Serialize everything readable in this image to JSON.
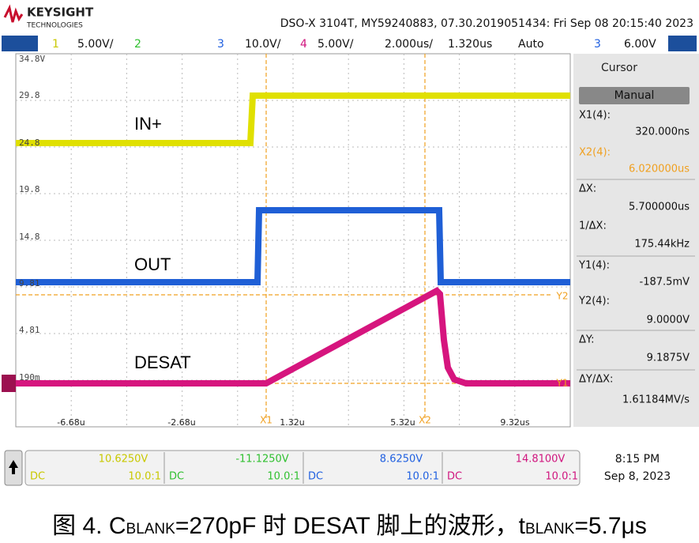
{
  "header": {
    "brand": "KEYSIGHT",
    "brand_sub": "TECHNOLOGIES",
    "instrument": "DSO-X 3104T, MY59240883, 07.30.2019051434: Fri Sep 08 20:15:40 2023"
  },
  "channel_bar": {
    "items": [
      "1",
      "5.00V/",
      "2",
      "3",
      "10.0V/",
      "4",
      "5.00V/",
      "2.000us/",
      "1.320us",
      "Auto",
      "3",
      "6.00V"
    ]
  },
  "screen": {
    "y_labels": [
      "34.8V",
      "29.8",
      "24.8",
      "19.8",
      "14.8",
      "9.81",
      "4.81",
      "190m"
    ],
    "x_labels": [
      "-6.68u",
      "-2.68u",
      "1.32u",
      "5.32u",
      "9.32us"
    ],
    "trace_labels": [
      "IN+",
      "OUT",
      "DESAT"
    ],
    "cursor_markers": [
      "X1",
      "X2",
      "Y1",
      "Y2"
    ]
  },
  "sidebar": {
    "title": "Cursor",
    "mode": "Manual",
    "readouts": [
      {
        "label": "X1(4):",
        "value": "320.000ns"
      },
      {
        "label": "X2(4):",
        "value": "6.020000us"
      },
      {
        "label": "ΔX:",
        "value": "5.700000us"
      },
      {
        "label": "1/ΔX:",
        "value": "175.44kHz"
      },
      {
        "label": "Y1(4):",
        "value": "-187.5mV"
      },
      {
        "label": "Y2(4):",
        "value": "9.0000V"
      },
      {
        "label": "ΔY:",
        "value": "9.1875V"
      },
      {
        "label": "ΔY/ΔX:",
        "value": "1.61184MV/s"
      }
    ]
  },
  "channels": [
    {
      "offset": "10.6250V",
      "coupling": "DC",
      "probe": "10.0:1"
    },
    {
      "offset": "-11.1250V",
      "coupling": "DC",
      "probe": "10.0:1"
    },
    {
      "offset": "8.6250V",
      "coupling": "DC",
      "probe": "10.0:1"
    },
    {
      "offset": "14.8100V",
      "coupling": "DC",
      "probe": "10.0:1"
    }
  ],
  "clock": {
    "time": "8:15 PM",
    "date": "Sep 8, 2023"
  },
  "caption": {
    "parts": [
      "图 4. C",
      "BLANK",
      "=270pF 时 DESAT 脚上的波形，t",
      "BLANK",
      "=5.7μs"
    ]
  }
}
